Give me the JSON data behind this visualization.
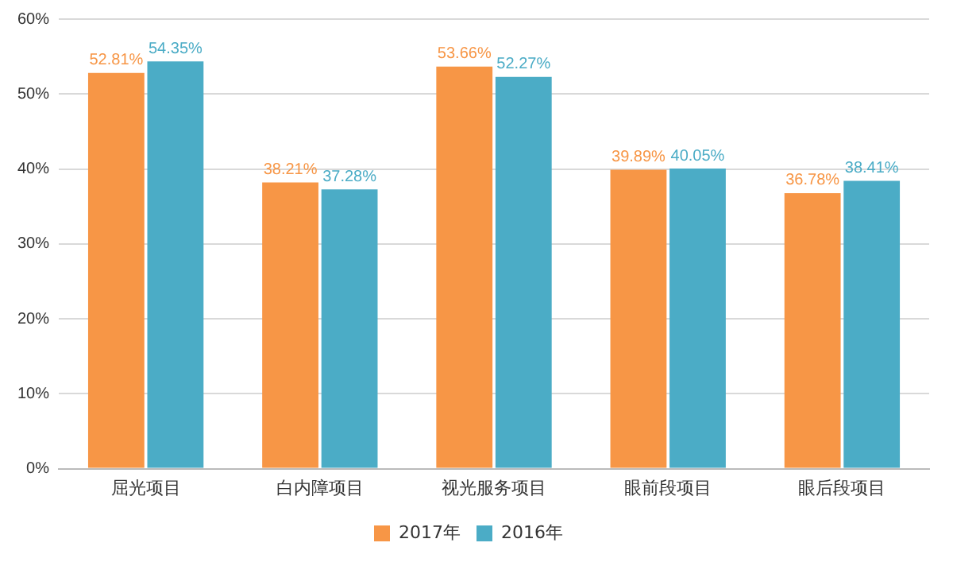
{
  "chart_data": {
    "type": "bar",
    "categories": [
      "屈光项目",
      "白内障项目",
      "视光服务项目",
      "眼前段项目",
      "眼后段项目"
    ],
    "series": [
      {
        "name": "2017年",
        "color": "#f79646",
        "values": [
          52.81,
          38.21,
          53.66,
          39.89,
          36.78
        ],
        "value_labels": [
          "52.81%",
          "38.21%",
          "53.66%",
          "39.89%",
          "36.78%"
        ]
      },
      {
        "name": "2016年",
        "color": "#4bacc6",
        "values": [
          54.35,
          37.28,
          52.27,
          40.05,
          38.41
        ],
        "value_labels": [
          "54.35%",
          "37.28%",
          "52.27%",
          "40.05%",
          "38.41%"
        ]
      }
    ],
    "ylim": [
      0,
      60
    ],
    "yticks": [
      {
        "value": 0,
        "label": "0%"
      },
      {
        "value": 10,
        "label": "10%"
      },
      {
        "value": 20,
        "label": "20%"
      },
      {
        "value": 30,
        "label": "30%"
      },
      {
        "value": 40,
        "label": "40%"
      },
      {
        "value": 50,
        "label": "50%"
      },
      {
        "value": 60,
        "label": "60%"
      }
    ],
    "grid": "y",
    "legend": "bottom"
  }
}
